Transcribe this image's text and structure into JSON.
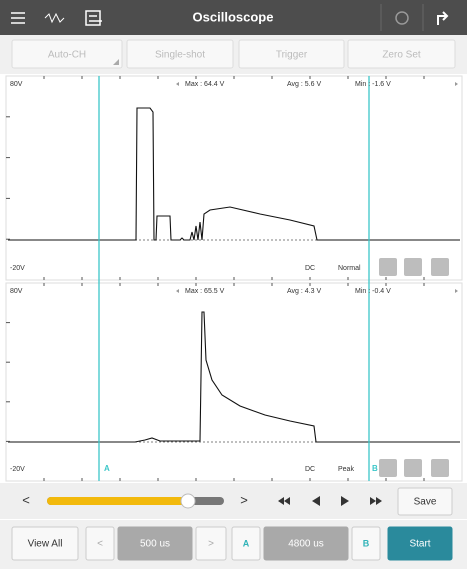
{
  "header": {
    "title": "Oscilloscope"
  },
  "toolbar": {
    "buttons": [
      "Auto-CH",
      "Single-shot",
      "Trigger",
      "Zero Set"
    ]
  },
  "channels": [
    {
      "y_max": "80V",
      "y_min": "-20V",
      "max": "Max : 64.4 V",
      "avg": "Avg : 5.6 V",
      "min": "Min : -1.6 V",
      "coupling": "DC",
      "mode": "Normal"
    },
    {
      "y_max": "80V",
      "y_min": "-20V",
      "max": "Max : 65.5 V",
      "avg": "Avg : 4.3 V",
      "min": "Min : -0.4 V",
      "coupling": "DC",
      "mode": "Peak",
      "cursor_a": "A",
      "cursor_b": "B"
    }
  ],
  "playback": {
    "prev": "<",
    "next": ">",
    "save": "Save"
  },
  "footer": {
    "view_all": "View All",
    "prev": "<",
    "time_div": "500 us",
    "next": ">",
    "cursor_a": "A",
    "cursor_delta": "4800 us",
    "cursor_b": "B",
    "start": "Start"
  }
}
